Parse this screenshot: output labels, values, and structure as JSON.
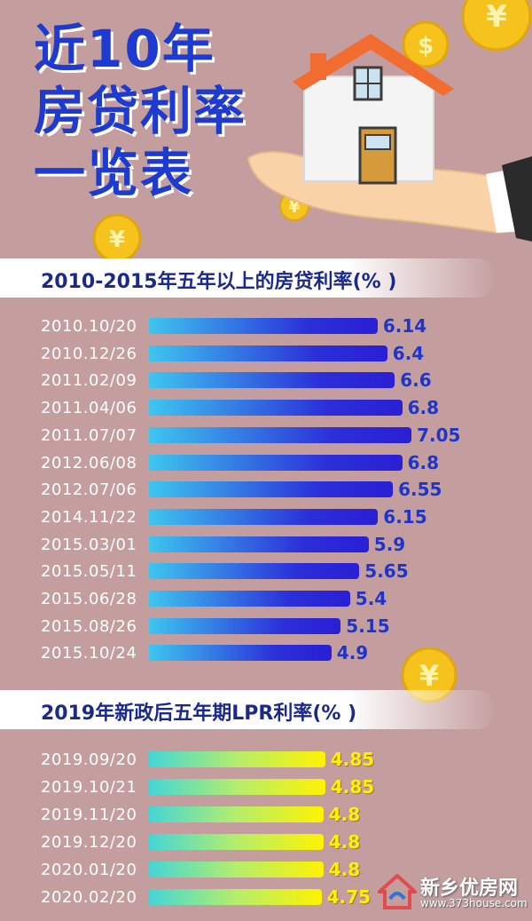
{
  "title": {
    "line1": "近10年",
    "line2": "房贷利率",
    "line3": "一览表"
  },
  "watermark": {
    "name": "新乡优房网",
    "url": "www.373house.com"
  },
  "colors": {
    "background": "#c49e9f",
    "title": "#1d3bd1",
    "blue_series": "#2a1fd4",
    "yellow_series": "#fff200"
  },
  "chart_data": [
    {
      "type": "bar",
      "orientation": "horizontal",
      "title": "2010-2015年五年以上的房贷利率(% )",
      "categories": [
        "2010.10/20",
        "2010.12/26",
        "2011.02/09",
        "2011.04/06",
        "2011.07/07",
        "2012.06/08",
        "2012.07/06",
        "2014.11/22",
        "2015.03/01",
        "2015.05/11",
        "2015.06/28",
        "2015.08/26",
        "2015.10/24"
      ],
      "value_labels": [
        "6.14",
        "6.4",
        "6.6",
        "6.8",
        "7.05",
        "6.8",
        "6.55",
        "6.15",
        "5.9",
        "5.65",
        "5.4",
        "5.15",
        "4.9"
      ],
      "values": [
        6.14,
        6.4,
        6.6,
        6.8,
        7.05,
        6.8,
        6.55,
        6.15,
        5.9,
        5.65,
        5.4,
        5.15,
        4.9
      ]
    },
    {
      "type": "bar",
      "orientation": "horizontal",
      "title": "2019年新政后五年期LPR利率(% )",
      "categories": [
        "2019.09/20",
        "2019.10/21",
        "2019.11/20",
        "2019.12/20",
        "2020.01/20",
        "2020.02/20"
      ],
      "value_labels": [
        "4.85",
        "4.85",
        "4.8",
        "4.8",
        "4.8",
        "4.75"
      ],
      "values": [
        4.85,
        4.85,
        4.8,
        4.8,
        4.8,
        4.75
      ]
    }
  ]
}
